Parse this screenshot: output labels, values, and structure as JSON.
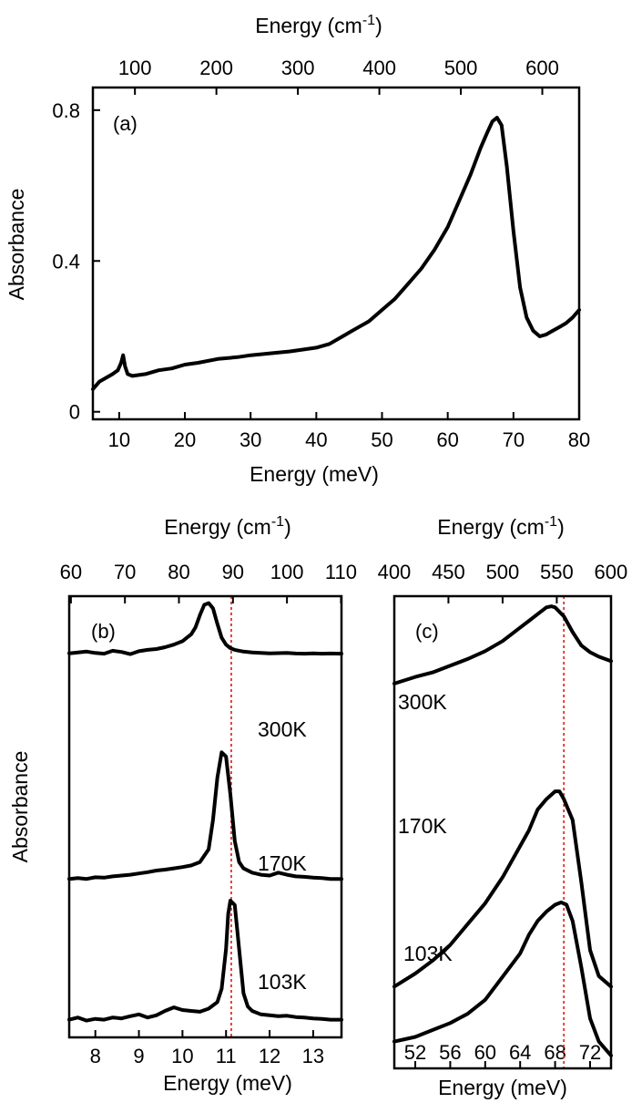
{
  "chart_data": [
    {
      "id": "a",
      "type": "line",
      "panel_label": "(a)",
      "xlabel": "Energy (meV)",
      "ylabel": "Absorbance",
      "top_xlabel": "Energy (cm",
      "top_xlabel_exp": "-1",
      "top_xlabel_close": ")",
      "xlim": [
        6,
        80
      ],
      "ylim": [
        -0.02,
        0.86
      ],
      "x_ticks": [
        10,
        20,
        30,
        40,
        50,
        60,
        70,
        80
      ],
      "x_tick_labels": [
        "10",
        "20",
        "30",
        "40",
        "50",
        "60",
        "70",
        "80"
      ],
      "y_ticks": [
        0,
        0.4,
        0.8
      ],
      "y_tick_labels": [
        "0",
        "0.4",
        "0.8"
      ],
      "top_ticks_cm": [
        100,
        200,
        300,
        400,
        500,
        600
      ],
      "top_tick_labels": [
        "100",
        "200",
        "300",
        "400",
        "500",
        "600"
      ],
      "series": [
        {
          "name": "Absorbance",
          "x": [
            6,
            7,
            8,
            9,
            9.8,
            10.3,
            10.6,
            10.9,
            11.3,
            12,
            14,
            16,
            18,
            20,
            22,
            25,
            28,
            30,
            33,
            36,
            40,
            42,
            44,
            46,
            48,
            50,
            52,
            54,
            56,
            58,
            60,
            62,
            63.5,
            65,
            66,
            66.8,
            67.5,
            68.2,
            69,
            70,
            71,
            72,
            73,
            74,
            75,
            76,
            77,
            78,
            79,
            80
          ],
          "y": [
            0.06,
            0.08,
            0.09,
            0.1,
            0.11,
            0.13,
            0.15,
            0.12,
            0.1,
            0.095,
            0.1,
            0.11,
            0.115,
            0.125,
            0.13,
            0.14,
            0.145,
            0.15,
            0.155,
            0.16,
            0.17,
            0.18,
            0.2,
            0.22,
            0.24,
            0.27,
            0.3,
            0.34,
            0.38,
            0.43,
            0.49,
            0.57,
            0.63,
            0.7,
            0.74,
            0.77,
            0.78,
            0.76,
            0.65,
            0.48,
            0.33,
            0.25,
            0.215,
            0.2,
            0.205,
            0.215,
            0.225,
            0.235,
            0.25,
            0.27
          ]
        }
      ]
    },
    {
      "id": "b",
      "type": "line",
      "panel_label": "(b)",
      "xlabel": "Energy (meV)",
      "ylabel": "Absorbance",
      "top_xlabel": "Energy (cm",
      "top_xlabel_exp": "-1",
      "top_xlabel_close": ")",
      "xlim": [
        7.4,
        13.65
      ],
      "ylim": [
        0,
        1
      ],
      "x_ticks": [
        8,
        9,
        10,
        11,
        12,
        13
      ],
      "x_tick_labels": [
        "8",
        "9",
        "10",
        "11",
        "12",
        "13"
      ],
      "top_ticks_cm": [
        60,
        70,
        80,
        90,
        100,
        110
      ],
      "top_tick_labels": [
        "60",
        "70",
        "80",
        "90",
        "100",
        "110"
      ],
      "ref_line_x": 11.12,
      "series": [
        {
          "name": "300K",
          "x": [
            7.4,
            7.6,
            7.8,
            8.0,
            8.2,
            8.4,
            8.6,
            8.8,
            9.0,
            9.2,
            9.4,
            9.6,
            9.8,
            10.0,
            10.1,
            10.2,
            10.3,
            10.4,
            10.5,
            10.6,
            10.7,
            10.8,
            10.9,
            11.0,
            11.1,
            11.2,
            11.4,
            11.6,
            11.8,
            12.0,
            12.2,
            12.4,
            12.6,
            12.8,
            13.0,
            13.2,
            13.4,
            13.65
          ],
          "y": [
            0.67,
            0.675,
            0.68,
            0.672,
            0.668,
            0.685,
            0.678,
            0.665,
            0.682,
            0.69,
            0.695,
            0.705,
            0.72,
            0.74,
            0.76,
            0.78,
            0.82,
            0.89,
            0.95,
            0.96,
            0.93,
            0.84,
            0.76,
            0.72,
            0.7,
            0.69,
            0.68,
            0.675,
            0.672,
            0.67,
            0.671,
            0.672,
            0.669,
            0.668,
            0.67,
            0.668,
            0.669,
            0.668
          ],
          "label": "300K"
        },
        {
          "name": "170K",
          "x": [
            7.4,
            7.6,
            7.8,
            8.0,
            8.2,
            8.4,
            8.6,
            8.8,
            9.0,
            9.2,
            9.4,
            9.6,
            9.8,
            10.0,
            10.2,
            10.4,
            10.6,
            10.7,
            10.8,
            10.9,
            11.0,
            11.1,
            11.2,
            11.3,
            11.4,
            11.6,
            11.8,
            12.0,
            12.2,
            12.4,
            12.6,
            12.8,
            13.0,
            13.2,
            13.4,
            13.65
          ],
          "y": [
            0.33,
            0.332,
            0.33,
            0.334,
            0.333,
            0.336,
            0.338,
            0.34,
            0.343,
            0.346,
            0.35,
            0.352,
            0.355,
            0.358,
            0.362,
            0.37,
            0.4,
            0.47,
            0.57,
            0.63,
            0.62,
            0.53,
            0.42,
            0.37,
            0.355,
            0.345,
            0.34,
            0.338,
            0.345,
            0.34,
            0.336,
            0.335,
            0.333,
            0.332,
            0.33,
            0.33
          ],
          "label": "170K"
        },
        {
          "name": "103K",
          "x": [
            7.4,
            7.6,
            7.8,
            8.0,
            8.2,
            8.4,
            8.6,
            8.8,
            9.0,
            9.2,
            9.4,
            9.6,
            9.8,
            10.0,
            10.2,
            10.4,
            10.6,
            10.8,
            10.9,
            11.0,
            11.05,
            11.1,
            11.2,
            11.3,
            11.4,
            11.5,
            11.6,
            11.8,
            12.0,
            12.2,
            12.4,
            12.6,
            12.8,
            13.0,
            13.2,
            13.4,
            13.65
          ],
          "y": [
            0.04,
            0.045,
            0.038,
            0.042,
            0.04,
            0.045,
            0.043,
            0.048,
            0.052,
            0.045,
            0.05,
            0.06,
            0.068,
            0.062,
            0.06,
            0.058,
            0.065,
            0.08,
            0.11,
            0.2,
            0.28,
            0.31,
            0.3,
            0.2,
            0.1,
            0.07,
            0.06,
            0.052,
            0.05,
            0.048,
            0.049,
            0.046,
            0.045,
            0.043,
            0.042,
            0.04,
            0.04
          ],
          "label": "103K"
        }
      ]
    },
    {
      "id": "c",
      "type": "line",
      "panel_label": "(c)",
      "xlabel": "Energy (meV)",
      "top_xlabel": "Energy (cm",
      "top_xlabel_exp": "-1",
      "top_xlabel_close": ")",
      "xlim": [
        49.6,
        74.4
      ],
      "ylim": [
        0,
        1
      ],
      "x_ticks": [
        52,
        56,
        60,
        64,
        68,
        72
      ],
      "x_tick_labels": [
        "52",
        "56",
        "60",
        "64",
        "68",
        "72"
      ],
      "top_ticks_cm": [
        400,
        450,
        500,
        550,
        600
      ],
      "top_tick_labels": [
        "400",
        "450",
        "500",
        "550",
        "600"
      ],
      "ref_line_x": 69.0,
      "series": [
        {
          "name": "300K",
          "x": [
            49.6,
            52,
            54,
            56,
            58,
            60,
            62,
            63,
            64,
            65,
            66,
            67,
            67.6,
            68,
            69,
            70,
            71,
            72,
            73,
            74.4
          ],
          "y": [
            0.61,
            0.64,
            0.66,
            0.69,
            0.72,
            0.755,
            0.8,
            0.83,
            0.86,
            0.89,
            0.92,
            0.95,
            0.955,
            0.95,
            0.91,
            0.84,
            0.78,
            0.75,
            0.73,
            0.71
          ],
          "label": "300K"
        },
        {
          "name": "170K",
          "x": [
            49.6,
            52,
            54,
            56,
            58,
            60,
            62,
            64,
            65,
            66,
            67,
            68,
            68.5,
            69,
            70,
            71,
            72,
            73,
            74.4
          ],
          "y": [
            0.25,
            0.275,
            0.3,
            0.33,
            0.37,
            0.41,
            0.46,
            0.52,
            0.55,
            0.59,
            0.61,
            0.625,
            0.625,
            0.61,
            0.57,
            0.45,
            0.32,
            0.27,
            0.25
          ],
          "label": "170K"
        },
        {
          "name": "103K",
          "x": [
            49.6,
            52,
            54,
            56,
            58,
            60,
            62,
            64,
            65,
            66,
            67,
            68,
            68.7,
            69.3,
            70,
            71,
            72,
            73,
            74.4
          ],
          "y": [
            0.04,
            0.05,
            0.065,
            0.08,
            0.1,
            0.13,
            0.18,
            0.23,
            0.27,
            0.3,
            0.32,
            0.335,
            0.34,
            0.335,
            0.3,
            0.2,
            0.09,
            0.04,
            0.01
          ],
          "label": "103K"
        }
      ]
    }
  ]
}
